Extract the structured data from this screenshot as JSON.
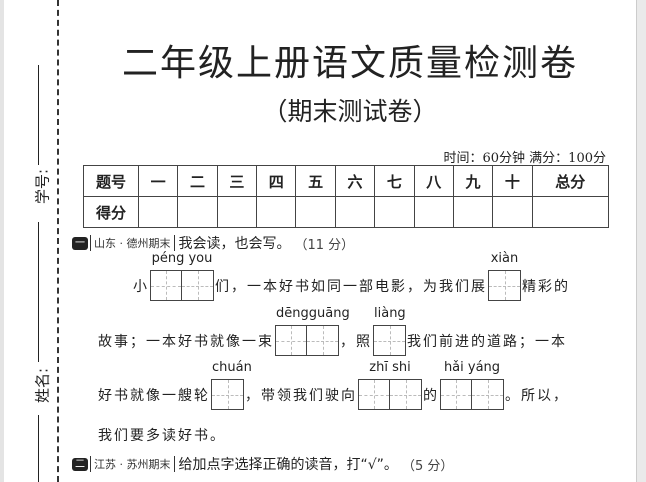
{
  "side": {
    "id_label": "学号:",
    "name_label": "姓名:"
  },
  "title": "二年级上册语文质量检测卷",
  "subtitle": "（期末测试卷）",
  "time_info": "时间：60分钟  满分：100分",
  "table": {
    "header": [
      "题号",
      "一",
      "二",
      "三",
      "四",
      "五",
      "六",
      "七",
      "八",
      "九",
      "十",
      "总分"
    ],
    "row_label": "得分"
  },
  "section1": {
    "badge": "一",
    "source": "山东 · 德州期末",
    "instruction": "我会读，也会写。",
    "points": "（11 分）",
    "l1": {
      "a": "小",
      "p1": "péng  you",
      "b": "们，一本好书如同一部电影，为我们展",
      "p2": "xiàn",
      "c": "精彩的"
    },
    "l2": {
      "a": "故事；一本好书就像一束",
      "p1": "dēngguāng",
      "b": "，照",
      "p2": "liàng",
      "c": "我们前进的道路；一本"
    },
    "l3": {
      "a": "好书就像一艘轮",
      "p1": "chuán",
      "b": "，带领我们驶向",
      "p2": "zhī    shi",
      "c": "的",
      "p3": "hǎi  yáng",
      "d": "。所以，"
    },
    "l4": "我们要多读好书。"
  },
  "section2": {
    "badge": "二",
    "source": "江苏 · 苏州期末",
    "instruction": "给加点字选择正确的读音，打“√”。",
    "points": "（5 分）"
  }
}
